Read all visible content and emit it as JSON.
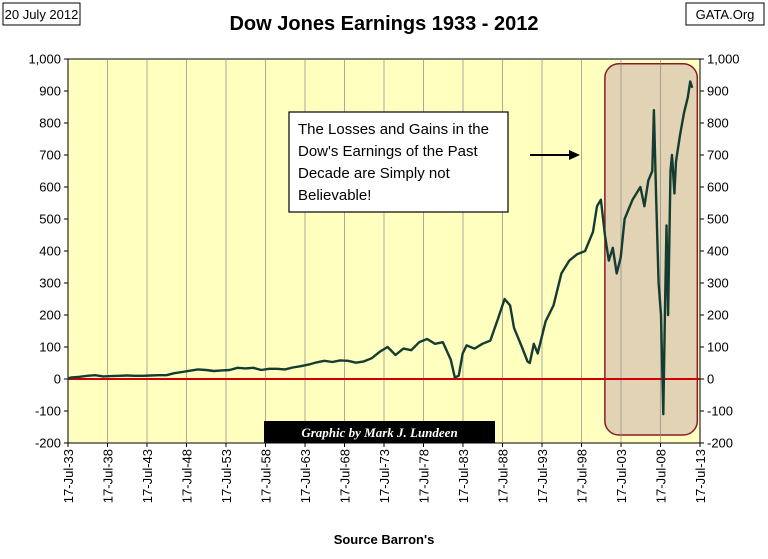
{
  "header": {
    "date": "20 July 2012",
    "source_tag": "GATA.Org"
  },
  "footer": {
    "credit": "Graphic by Mark J. Lundeen"
  },
  "annotation": {
    "lines": [
      "The Losses and Gains in the",
      "Dow's Earnings of the Past",
      "Decade are Simply not",
      "Believable!"
    ]
  },
  "colors": {
    "plot_background": "#ffffc0",
    "highlight_fill": "#dccbb0",
    "highlight_border": "#8b1a2b",
    "series_line": "#143c32",
    "zero_line": "#d00000",
    "credit_background": "#000000",
    "credit_text": "#ffffff"
  },
  "chart_data": {
    "type": "line",
    "title": "Dow Jones Earnings 1933 - 2012",
    "xlabel": "Source Barron's",
    "ylabel": "",
    "ylim": [
      -200,
      1000
    ],
    "yticks": [
      -200,
      -100,
      0,
      100,
      200,
      300,
      400,
      500,
      600,
      700,
      800,
      900,
      1000
    ],
    "ytick_labels": [
      "-200",
      "-100",
      "0",
      "100",
      "200",
      "300",
      "400",
      "500",
      "600",
      "700",
      "800",
      "900",
      "1,000"
    ],
    "y_axis_sides": "left-and-right",
    "xlim": [
      1933.54,
      2013.54
    ],
    "xtick_years": [
      1933.54,
      1938.54,
      1943.54,
      1948.54,
      1953.54,
      1958.54,
      1963.54,
      1968.54,
      1973.54,
      1978.54,
      1983.54,
      1988.54,
      1993.54,
      1998.54,
      2003.54,
      2008.54,
      2013.54
    ],
    "xtick_labels": [
      "17-Jul-33",
      "17-Jul-38",
      "17-Jul-43",
      "17-Jul-48",
      "17-Jul-53",
      "17-Jul-58",
      "17-Jul-63",
      "17-Jul-68",
      "17-Jul-73",
      "17-Jul-78",
      "17-Jul-83",
      "17-Jul-88",
      "17-Jul-93",
      "17-Jul-98",
      "17-Jul-03",
      "17-Jul-08",
      "17-Jul-13"
    ],
    "grid": "vertical",
    "reference_line_y": 0,
    "highlight_region": {
      "x": [
        2001.5,
        2013.2
      ],
      "y": [
        -175,
        985
      ]
    },
    "series": [
      {
        "x": [
          1933.5,
          1934,
          1935,
          1936,
          1937,
          1938,
          1939,
          1940,
          1941,
          1942,
          1943,
          1944,
          1945,
          1946,
          1947,
          1948,
          1949,
          1950,
          1951,
          1952,
          1953,
          1954,
          1955,
          1956,
          1957,
          1958,
          1959,
          1960,
          1961,
          1962,
          1963,
          1964,
          1965,
          1966,
          1967,
          1968,
          1969,
          1970,
          1971,
          1972,
          1973,
          1974,
          1975,
          1976,
          1977,
          1978,
          1979,
          1980,
          1981,
          1982,
          1982.5,
          1983,
          1983.5,
          1984,
          1985,
          1986,
          1987,
          1988,
          1988.8,
          1989.5,
          1990,
          1991,
          1991.7,
          1992,
          1992.5,
          1993,
          1994,
          1995,
          1996,
          1997,
          1998,
          1999,
          2000,
          2000.5,
          2001,
          2001.5,
          2002,
          2002.5,
          2003,
          2003.5,
          2004,
          2005,
          2006,
          2006.5,
          2007,
          2007.5,
          2007.7,
          2008,
          2008.3,
          2008.6,
          2008.9,
          2009.1,
          2009.3,
          2009.5,
          2009.8,
          2010,
          2010.3,
          2010.5,
          2011,
          2011.5,
          2012,
          2012.3,
          2012.55
        ],
        "y": [
          2,
          5,
          7,
          10,
          12,
          8,
          9,
          10,
          11,
          10,
          10,
          11,
          12,
          12,
          18,
          22,
          26,
          30,
          28,
          25,
          27,
          28,
          35,
          33,
          35,
          28,
          32,
          32,
          30,
          36,
          40,
          45,
          52,
          57,
          53,
          58,
          57,
          51,
          55,
          65,
          85,
          100,
          75,
          95,
          90,
          115,
          125,
          110,
          115,
          60,
          5,
          10,
          80,
          105,
          95,
          110,
          120,
          190,
          250,
          230,
          160,
          100,
          55,
          50,
          110,
          80,
          180,
          230,
          330,
          370,
          390,
          400,
          460,
          540,
          560,
          450,
          370,
          410,
          330,
          380,
          500,
          560,
          600,
          540,
          620,
          650,
          840,
          560,
          300,
          200,
          -110,
          200,
          480,
          200,
          650,
          700,
          580,
          680,
          760,
          830,
          880,
          930,
          910
        ]
      }
    ]
  }
}
